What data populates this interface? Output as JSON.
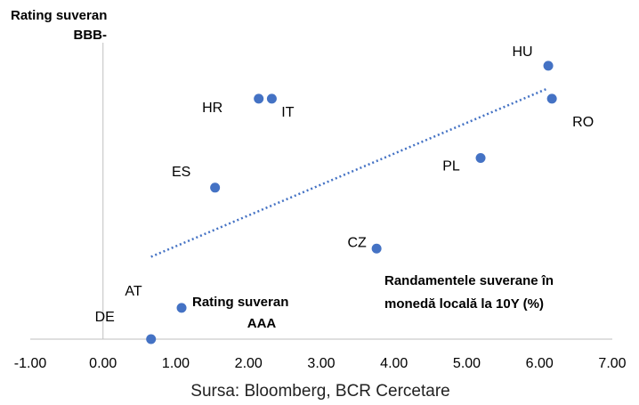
{
  "chart_data": {
    "type": "scatter",
    "color": "#4472c4",
    "points": [
      {
        "label": "DE",
        "x": 0.66,
        "y": 0
      },
      {
        "label": "AT",
        "x": 1.08,
        "y": 0.95
      },
      {
        "label": "ES",
        "x": 1.54,
        "y": 4.6
      },
      {
        "label": "HR",
        "x": 2.14,
        "y": 7.3
      },
      {
        "label": "IT",
        "x": 2.32,
        "y": 7.3
      },
      {
        "label": "CZ",
        "x": 3.76,
        "y": 2.75
      },
      {
        "label": "PL",
        "x": 5.19,
        "y": 5.5
      },
      {
        "label": "HU",
        "x": 6.12,
        "y": 8.3
      },
      {
        "label": "RO",
        "x": 6.17,
        "y": 7.3
      }
    ],
    "trendline": {
      "x": [
        0.66,
        6.1
      ],
      "y": [
        2.5,
        7.6
      ],
      "color": "#4472c4"
    },
    "xlim": [
      -1,
      7
    ],
    "ylim": [
      0,
      9
    ],
    "xticks": [
      {
        "value": -1,
        "label": "-1.00"
      },
      {
        "value": 0,
        "label": "0.00"
      },
      {
        "value": 1,
        "label": "1.00"
      },
      {
        "value": 2,
        "label": "2.00"
      },
      {
        "value": 3,
        "label": "3.00"
      },
      {
        "value": 4,
        "label": "4.00"
      },
      {
        "value": 5,
        "label": "5.00"
      },
      {
        "value": 6,
        "label": "6.00"
      },
      {
        "value": 7,
        "label": "7.00"
      }
    ],
    "annotations": [
      {
        "lines": [
          "Rating suveran",
          "BBB-"
        ]
      },
      {
        "lines": [
          "Rating suveran",
          "AAA"
        ]
      },
      {
        "lines": [
          "Randamentele suverane în",
          "monedă locală la 10Y (%)"
        ]
      }
    ],
    "source": "Sursa: Bloomberg, BCR Cercetare"
  }
}
